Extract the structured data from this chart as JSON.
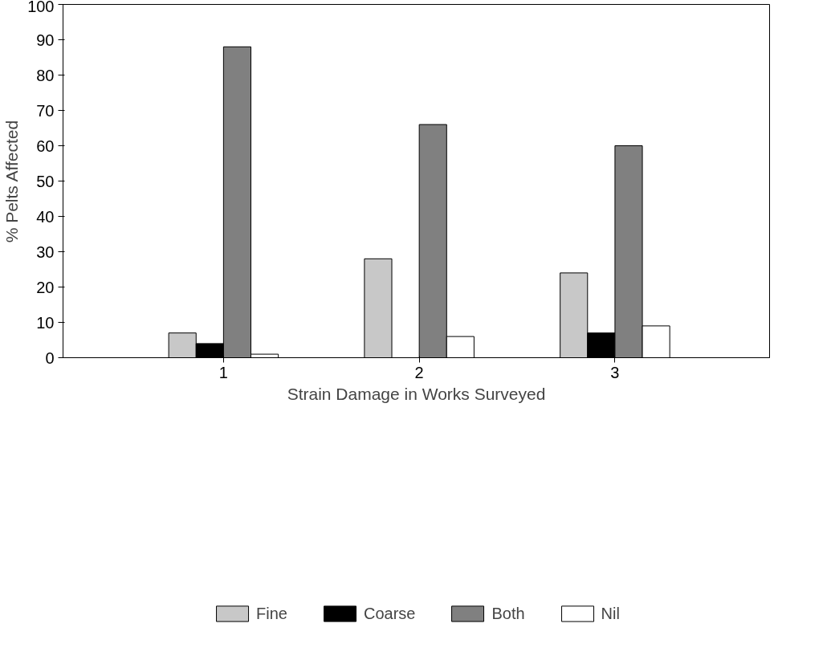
{
  "chart_data": {
    "type": "bar",
    "xlabel": "Strain Damage in Works Surveyed",
    "ylabel": "% Pelts Affected",
    "categories": [
      "1",
      "2",
      "3"
    ],
    "series": [
      {
        "name": "Fine",
        "color": "#c8c8c8",
        "values": [
          7,
          28,
          24
        ]
      },
      {
        "name": "Coarse",
        "color": "#000000",
        "values": [
          4,
          0,
          7
        ]
      },
      {
        "name": "Both",
        "color": "#808080",
        "values": [
          88,
          66,
          60
        ]
      },
      {
        "name": "Nil",
        "color": "#ffffff",
        "values": [
          1,
          6,
          9
        ]
      }
    ],
    "ylim": [
      0,
      100
    ],
    "yticks": [
      0,
      10,
      20,
      30,
      40,
      50,
      60,
      70,
      80,
      90,
      100
    ],
    "grid": false,
    "legend": "bottom"
  }
}
